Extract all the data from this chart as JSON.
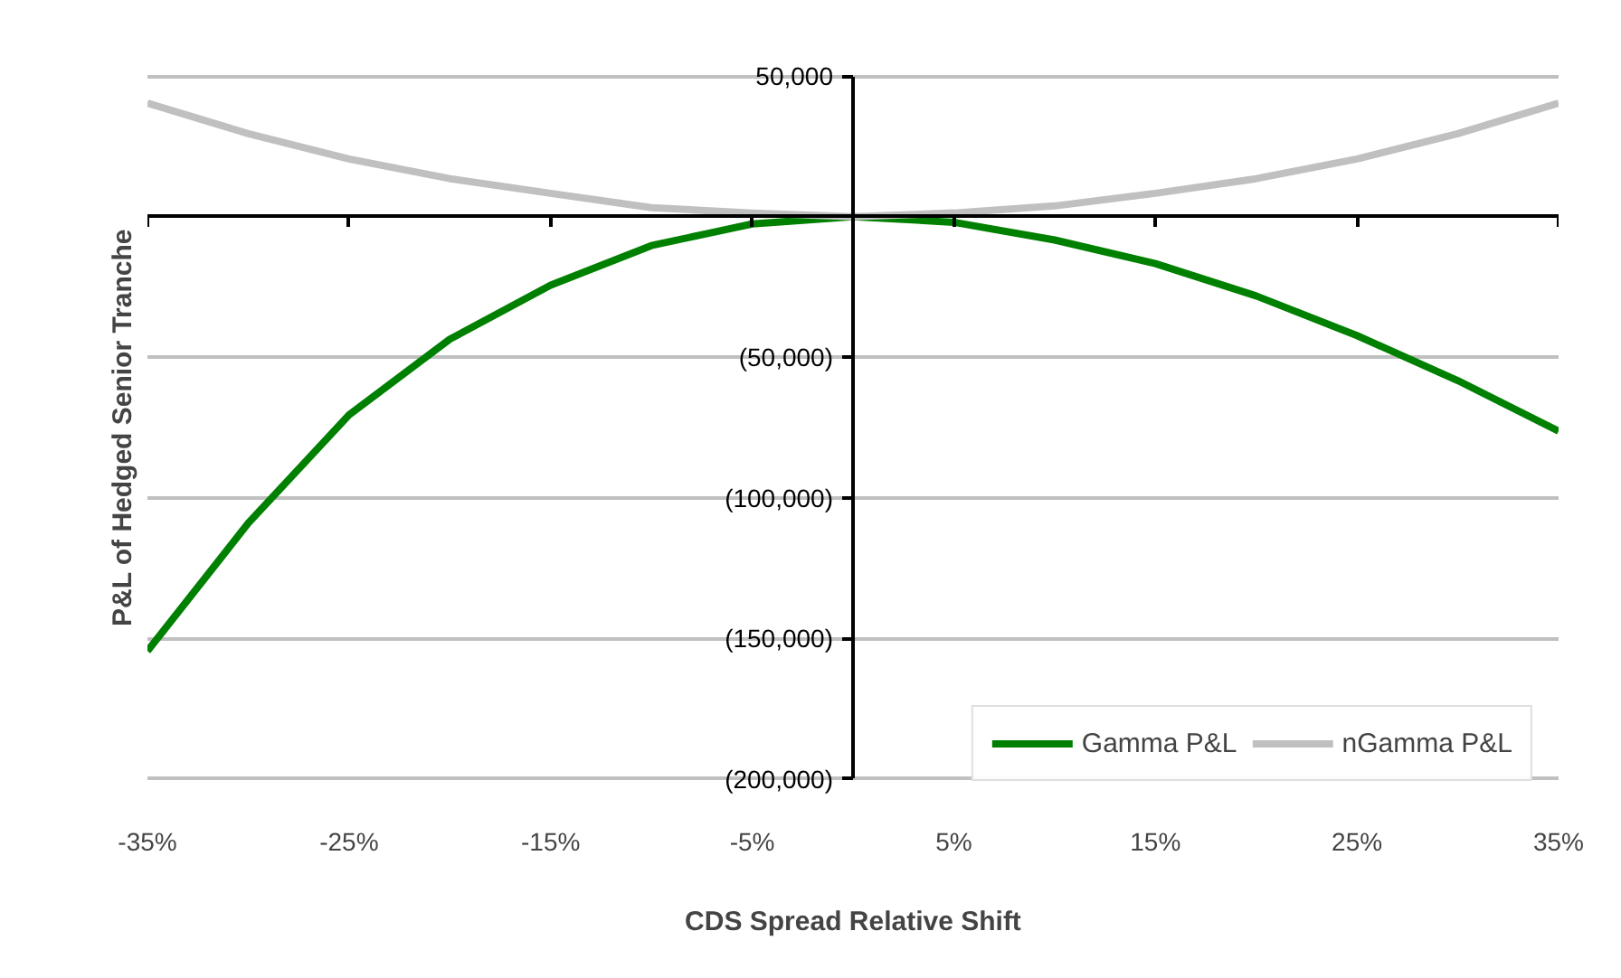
{
  "chart_data": {
    "type": "line",
    "xlabel": "CDS Spread Relative Shift",
    "ylabel": "P&L of Hedged Senior Tranche",
    "x": [
      -35,
      -30,
      -25,
      -20,
      -15,
      -10,
      -5,
      0,
      5,
      10,
      15,
      20,
      25,
      30,
      35
    ],
    "series": [
      {
        "name": "Gamma P&L",
        "color": "#008000",
        "values": [
          -154500,
          -109000,
          -70500,
          -43600,
          -24400,
          -10300,
          -2600,
          0,
          -2000,
          -8300,
          -16700,
          -28200,
          -42300,
          -58300,
          -76300
        ]
      },
      {
        "name": "nGamma P&L",
        "color": "#c0c0c0",
        "values": [
          40400,
          29500,
          20500,
          13500,
          8300,
          3200,
          1300,
          0,
          1300,
          3800,
          8300,
          13500,
          20500,
          29500,
          40400
        ]
      }
    ],
    "xlim": [
      -35,
      35
    ],
    "xticks": [
      {
        "value": -35,
        "label": "-35%"
      },
      {
        "value": -25,
        "label": "-25%"
      },
      {
        "value": -15,
        "label": "-15%"
      },
      {
        "value": -5,
        "label": "-5%"
      },
      {
        "value": 5,
        "label": "5%"
      },
      {
        "value": 15,
        "label": "15%"
      },
      {
        "value": 25,
        "label": "25%"
      },
      {
        "value": 35,
        "label": "35%"
      }
    ],
    "ylim": [
      -200000,
      50000
    ],
    "yticks": [
      {
        "value": 50000,
        "label": "50,000"
      },
      {
        "value": 0,
        "label": null
      },
      {
        "value": -50000,
        "label": "(50,000)"
      },
      {
        "value": -100000,
        "label": "(100,000)"
      },
      {
        "value": -150000,
        "label": "(150,000)"
      },
      {
        "value": -200000,
        "label": "(200,000)"
      }
    ],
    "grid": "y",
    "legend": "bottom right",
    "line_style": "solid",
    "marker": "none"
  }
}
